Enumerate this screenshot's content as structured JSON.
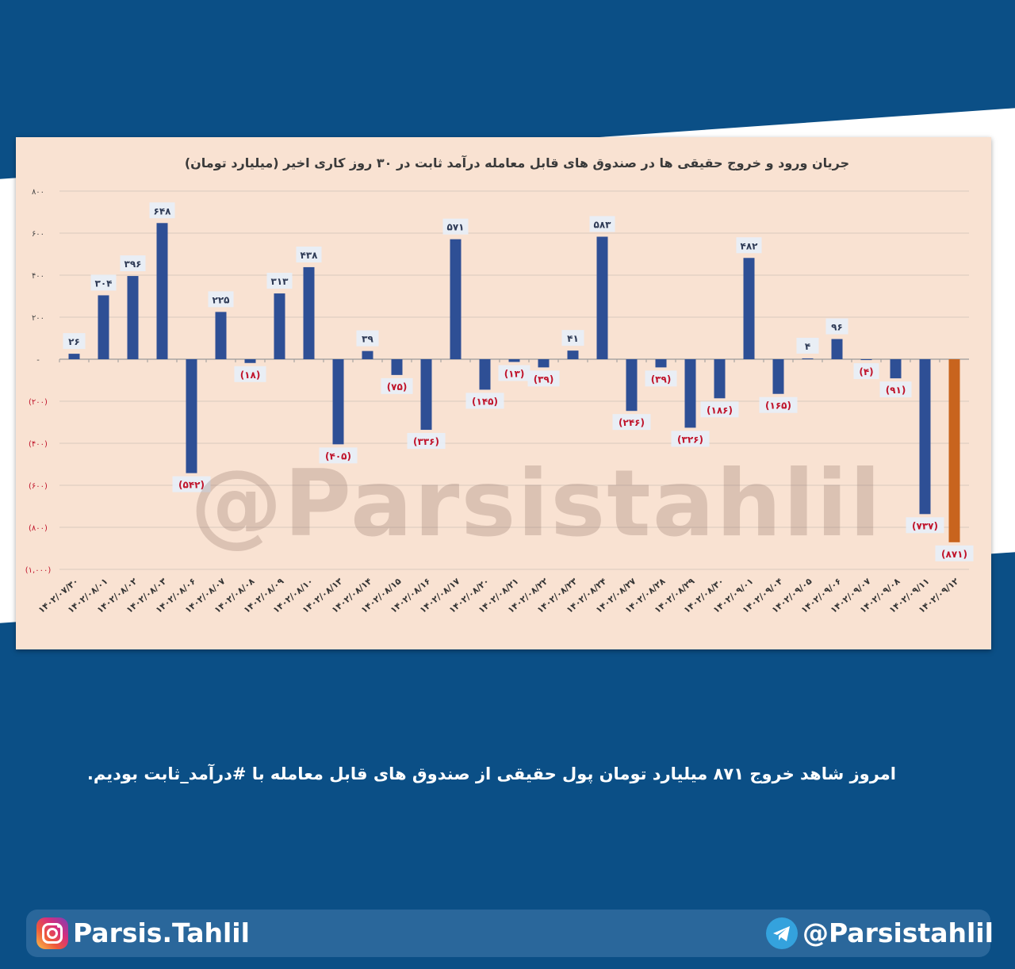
{
  "chart_data": {
    "type": "bar",
    "title": "جریان ورود و خروج حقیقی ها در صندوق های قابل معامله درآمد ثابت در ۳۰ روز کاری اخیر (میلیارد تومان)",
    "categories": [
      "۱۴۰۲/۰۷/۳۰",
      "۱۴۰۲/۰۸/۰۱",
      "۱۴۰۲/۰۸/۰۲",
      "۱۴۰۲/۰۸/۰۳",
      "۱۴۰۲/۰۸/۰۶",
      "۱۴۰۲/۰۸/۰۷",
      "۱۴۰۲/۰۸/۰۸",
      "۱۴۰۲/۰۸/۰۹",
      "۱۴۰۲/۰۸/۱۰",
      "۱۴۰۲/۰۸/۱۳",
      "۱۴۰۲/۰۸/۱۴",
      "۱۴۰۲/۰۸/۱۵",
      "۱۴۰۲/۰۸/۱۶",
      "۱۴۰۲/۰۸/۱۷",
      "۱۴۰۲/۰۸/۲۰",
      "۱۴۰۲/۰۸/۲۱",
      "۱۴۰۲/۰۸/۲۲",
      "۱۴۰۲/۰۸/۲۳",
      "۱۴۰۲/۰۸/۲۴",
      "۱۴۰۲/۰۸/۲۷",
      "۱۴۰۲/۰۸/۲۸",
      "۱۴۰۲/۰۸/۲۹",
      "۱۴۰۲/۰۸/۳۰",
      "۱۴۰۲/۰۹/۰۱",
      "۱۴۰۲/۰۹/۰۴",
      "۱۴۰۲/۰۹/۰۵",
      "۱۴۰۲/۰۹/۰۶",
      "۱۴۰۲/۰۹/۰۷",
      "۱۴۰۲/۰۹/۰۸",
      "۱۴۰۲/۰۹/۱۱",
      "۱۴۰۲/۰۹/۱۲"
    ],
    "values": [
      26,
      304,
      396,
      648,
      -542,
      225,
      -18,
      313,
      438,
      -405,
      39,
      -75,
      -336,
      571,
      -145,
      -13,
      -39,
      41,
      583,
      -246,
      -39,
      -326,
      -186,
      482,
      -165,
      4,
      96,
      -4,
      -91,
      -737,
      -871
    ],
    "value_labels": [
      "۲۶",
      "۳۰۴",
      "۳۹۶",
      "۶۴۸",
      "(۵۴۲)",
      "۲۲۵",
      "(۱۸)",
      "۳۱۳",
      "۴۳۸",
      "(۴۰۵)",
      "۳۹",
      "(۷۵)",
      "(۳۳۶)",
      "۵۷۱",
      "(۱۴۵)",
      "(۱۳)",
      "(۳۹)",
      "۴۱",
      "۵۸۳",
      "(۲۴۶)",
      "(۳۹)",
      "(۳۲۶)",
      "(۱۸۶)",
      "۴۸۲",
      "(۱۶۵)",
      "۴",
      "۹۶",
      "(۴)",
      "(۹۱)",
      "(۷۳۷)",
      "(۸۷۱)"
    ],
    "ylim": [
      -1000,
      800
    ],
    "yticks": [
      800,
      600,
      400,
      200,
      0,
      -200,
      -400,
      -600,
      -800,
      -1000
    ],
    "ytick_labels": [
      "۸۰۰",
      "۶۰۰",
      "۴۰۰",
      "۲۰۰",
      "-",
      "(۲۰۰)",
      "(۴۰۰)",
      "(۶۰۰)",
      "(۸۰۰)",
      "(۱,۰۰۰)"
    ],
    "grid": true,
    "colors": {
      "bar": "#2e4f95",
      "highlight": "#c8641e",
      "negative_label": "#c0142b",
      "positive_label": "#2e3a55"
    },
    "highlight_index": 30,
    "xlabel": "",
    "ylabel": ""
  },
  "watermark": "@Parsistahlil",
  "caption": "امروز شاهد خروج  ۸۷۱ میلیارد تومان پول حقیقی  از صندوق های قابل معامله با #درآمد_ثابت بودیم.",
  "footer": {
    "instagram_icon": "instagram-icon",
    "instagram_handle": "Parsis.Tahlil",
    "telegram_icon": "telegram-icon",
    "telegram_handle": "@Parsistahlil"
  }
}
